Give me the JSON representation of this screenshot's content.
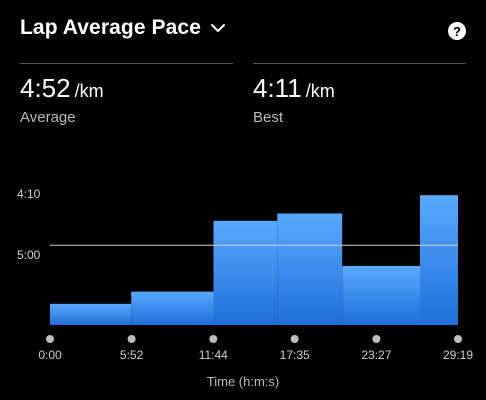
{
  "header": {
    "title": "Lap Average Pace",
    "dropdown_icon": "chevron-down-icon",
    "help_label": "?",
    "help_icon": "question-circle-icon"
  },
  "stats": {
    "average": {
      "value": "4:52",
      "unit": "/km",
      "label": "Average"
    },
    "best": {
      "value": "4:11",
      "unit": "/km",
      "label": "Best"
    }
  },
  "colors": {
    "background": "#000000",
    "bar_top": "#5aa9ff",
    "bar_bottom": "#1f6fd9",
    "average_line": "#cfcfcf",
    "tick_dot": "#bdbdbd"
  },
  "chart_data": {
    "type": "bar",
    "y_axis": {
      "tick_labels": [
        "4:10",
        "5:00"
      ],
      "tick_values_sec_per_km": [
        250,
        300
      ],
      "inverted": true
    },
    "x_axis": {
      "title": "Time (h:m:s)",
      "tick_labels": [
        "0:00",
        "5:52",
        "11:44",
        "17:35",
        "23:27",
        "29:19"
      ],
      "tick_values_sec": [
        0,
        352,
        704,
        1055,
        1407,
        1759
      ]
    },
    "average_pace_sec_per_km": 292,
    "laps": [
      {
        "start_sec": 0,
        "end_sec": 350,
        "pace_sec_per_km": 340
      },
      {
        "start_sec": 350,
        "end_sec": 705,
        "pace_sec_per_km": 330
      },
      {
        "start_sec": 705,
        "end_sec": 980,
        "pace_sec_per_km": 272
      },
      {
        "start_sec": 980,
        "end_sec": 1260,
        "pace_sec_per_km": 266
      },
      {
        "start_sec": 1260,
        "end_sec": 1595,
        "pace_sec_per_km": 309
      },
      {
        "start_sec": 1595,
        "end_sec": 1759,
        "pace_sec_per_km": 251
      }
    ]
  }
}
